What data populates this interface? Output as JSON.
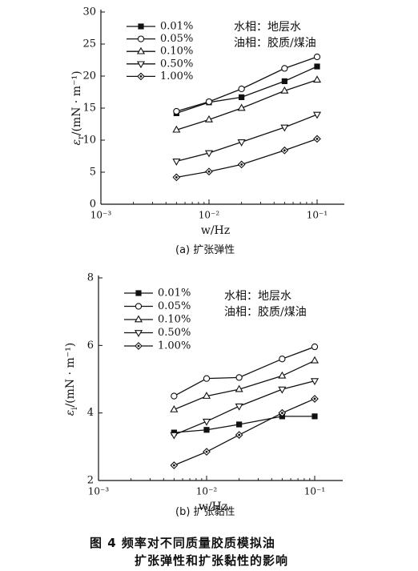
{
  "chart_data": [
    {
      "type": "line",
      "xscale": "log",
      "xlim": [
        0.001,
        0.1
      ],
      "ylim": [
        0,
        30
      ],
      "xlabel": "w/Hz",
      "ylabel": "ε_r/(mN·m⁻¹)",
      "ylabel_main": "ε",
      "ylabel_sub": "r",
      "ylabel_rest": "/(mN · m⁻¹)",
      "xticks": [
        0.001,
        0.01,
        0.1
      ],
      "xtick_labels": [
        "10⁻³",
        "10⁻²",
        "10⁻¹"
      ],
      "yticks": [
        0,
        5,
        10,
        15,
        20,
        25,
        30
      ],
      "ytick_labels": [
        "0",
        "5",
        "10",
        "15",
        "20",
        "25",
        "30"
      ],
      "annotations": [
        "水相：地层水",
        "油相：胶质/煤油"
      ],
      "caption": "(a) 扩张弹性",
      "x": [
        0.005,
        0.01,
        0.02,
        0.05,
        0.1
      ],
      "series": [
        {
          "name": "0.01%",
          "marker": "square",
          "values": [
            14.2,
            15.9,
            16.7,
            19.2,
            21.5
          ]
        },
        {
          "name": "0.05%",
          "marker": "circle",
          "values": [
            14.5,
            16.0,
            18.0,
            21.2,
            23.0
          ]
        },
        {
          "name": "0.10%",
          "marker": "triangle-up",
          "values": [
            11.6,
            13.2,
            15.0,
            17.7,
            19.4
          ]
        },
        {
          "name": "0.50%",
          "marker": "triangle-down",
          "values": [
            6.7,
            8.0,
            9.7,
            12.0,
            14.0
          ]
        },
        {
          "name": "1.00%",
          "marker": "diamond",
          "values": [
            4.2,
            5.1,
            6.2,
            8.4,
            10.2
          ]
        }
      ]
    },
    {
      "type": "line",
      "xscale": "log",
      "xlim": [
        0.001,
        0.1
      ],
      "ylim": [
        2,
        8
      ],
      "xlabel": "w/Hz",
      "ylabel": "ε_i/(mN·m⁻¹)",
      "ylabel_main": "ε",
      "ylabel_sub": "i",
      "ylabel_rest": "/(mN · m⁻¹)",
      "xticks": [
        0.001,
        0.01,
        0.1
      ],
      "xtick_labels": [
        "10⁻³",
        "10⁻²",
        "10⁻¹"
      ],
      "yticks": [
        2,
        4,
        6,
        8
      ],
      "ytick_labels": [
        "2",
        "4",
        "6",
        "8"
      ],
      "annotations": [
        "水相：地层水",
        "油相：胶质/煤油"
      ],
      "caption": "(b) 扩张黏性",
      "x": [
        0.005,
        0.01,
        0.02,
        0.05,
        0.1
      ],
      "series": [
        {
          "name": "0.01%",
          "marker": "square",
          "values": [
            3.42,
            3.5,
            3.66,
            3.9,
            3.9
          ]
        },
        {
          "name": "0.05%",
          "marker": "circle",
          "values": [
            4.5,
            5.02,
            5.05,
            5.6,
            5.96
          ]
        },
        {
          "name": "0.10%",
          "marker": "triangle-up",
          "values": [
            4.1,
            4.5,
            4.7,
            5.1,
            5.55
          ]
        },
        {
          "name": "0.50%",
          "marker": "triangle-down",
          "values": [
            3.35,
            3.75,
            4.2,
            4.7,
            4.95
          ]
        },
        {
          "name": "1.00%",
          "marker": "diamond",
          "values": [
            2.45,
            2.85,
            3.35,
            4.0,
            4.42
          ]
        }
      ]
    }
  ],
  "figure_caption": {
    "line1": "图 4   频率对不同质量胶质模拟油",
    "line2": "扩张弹性和扩张黏性的影响"
  }
}
